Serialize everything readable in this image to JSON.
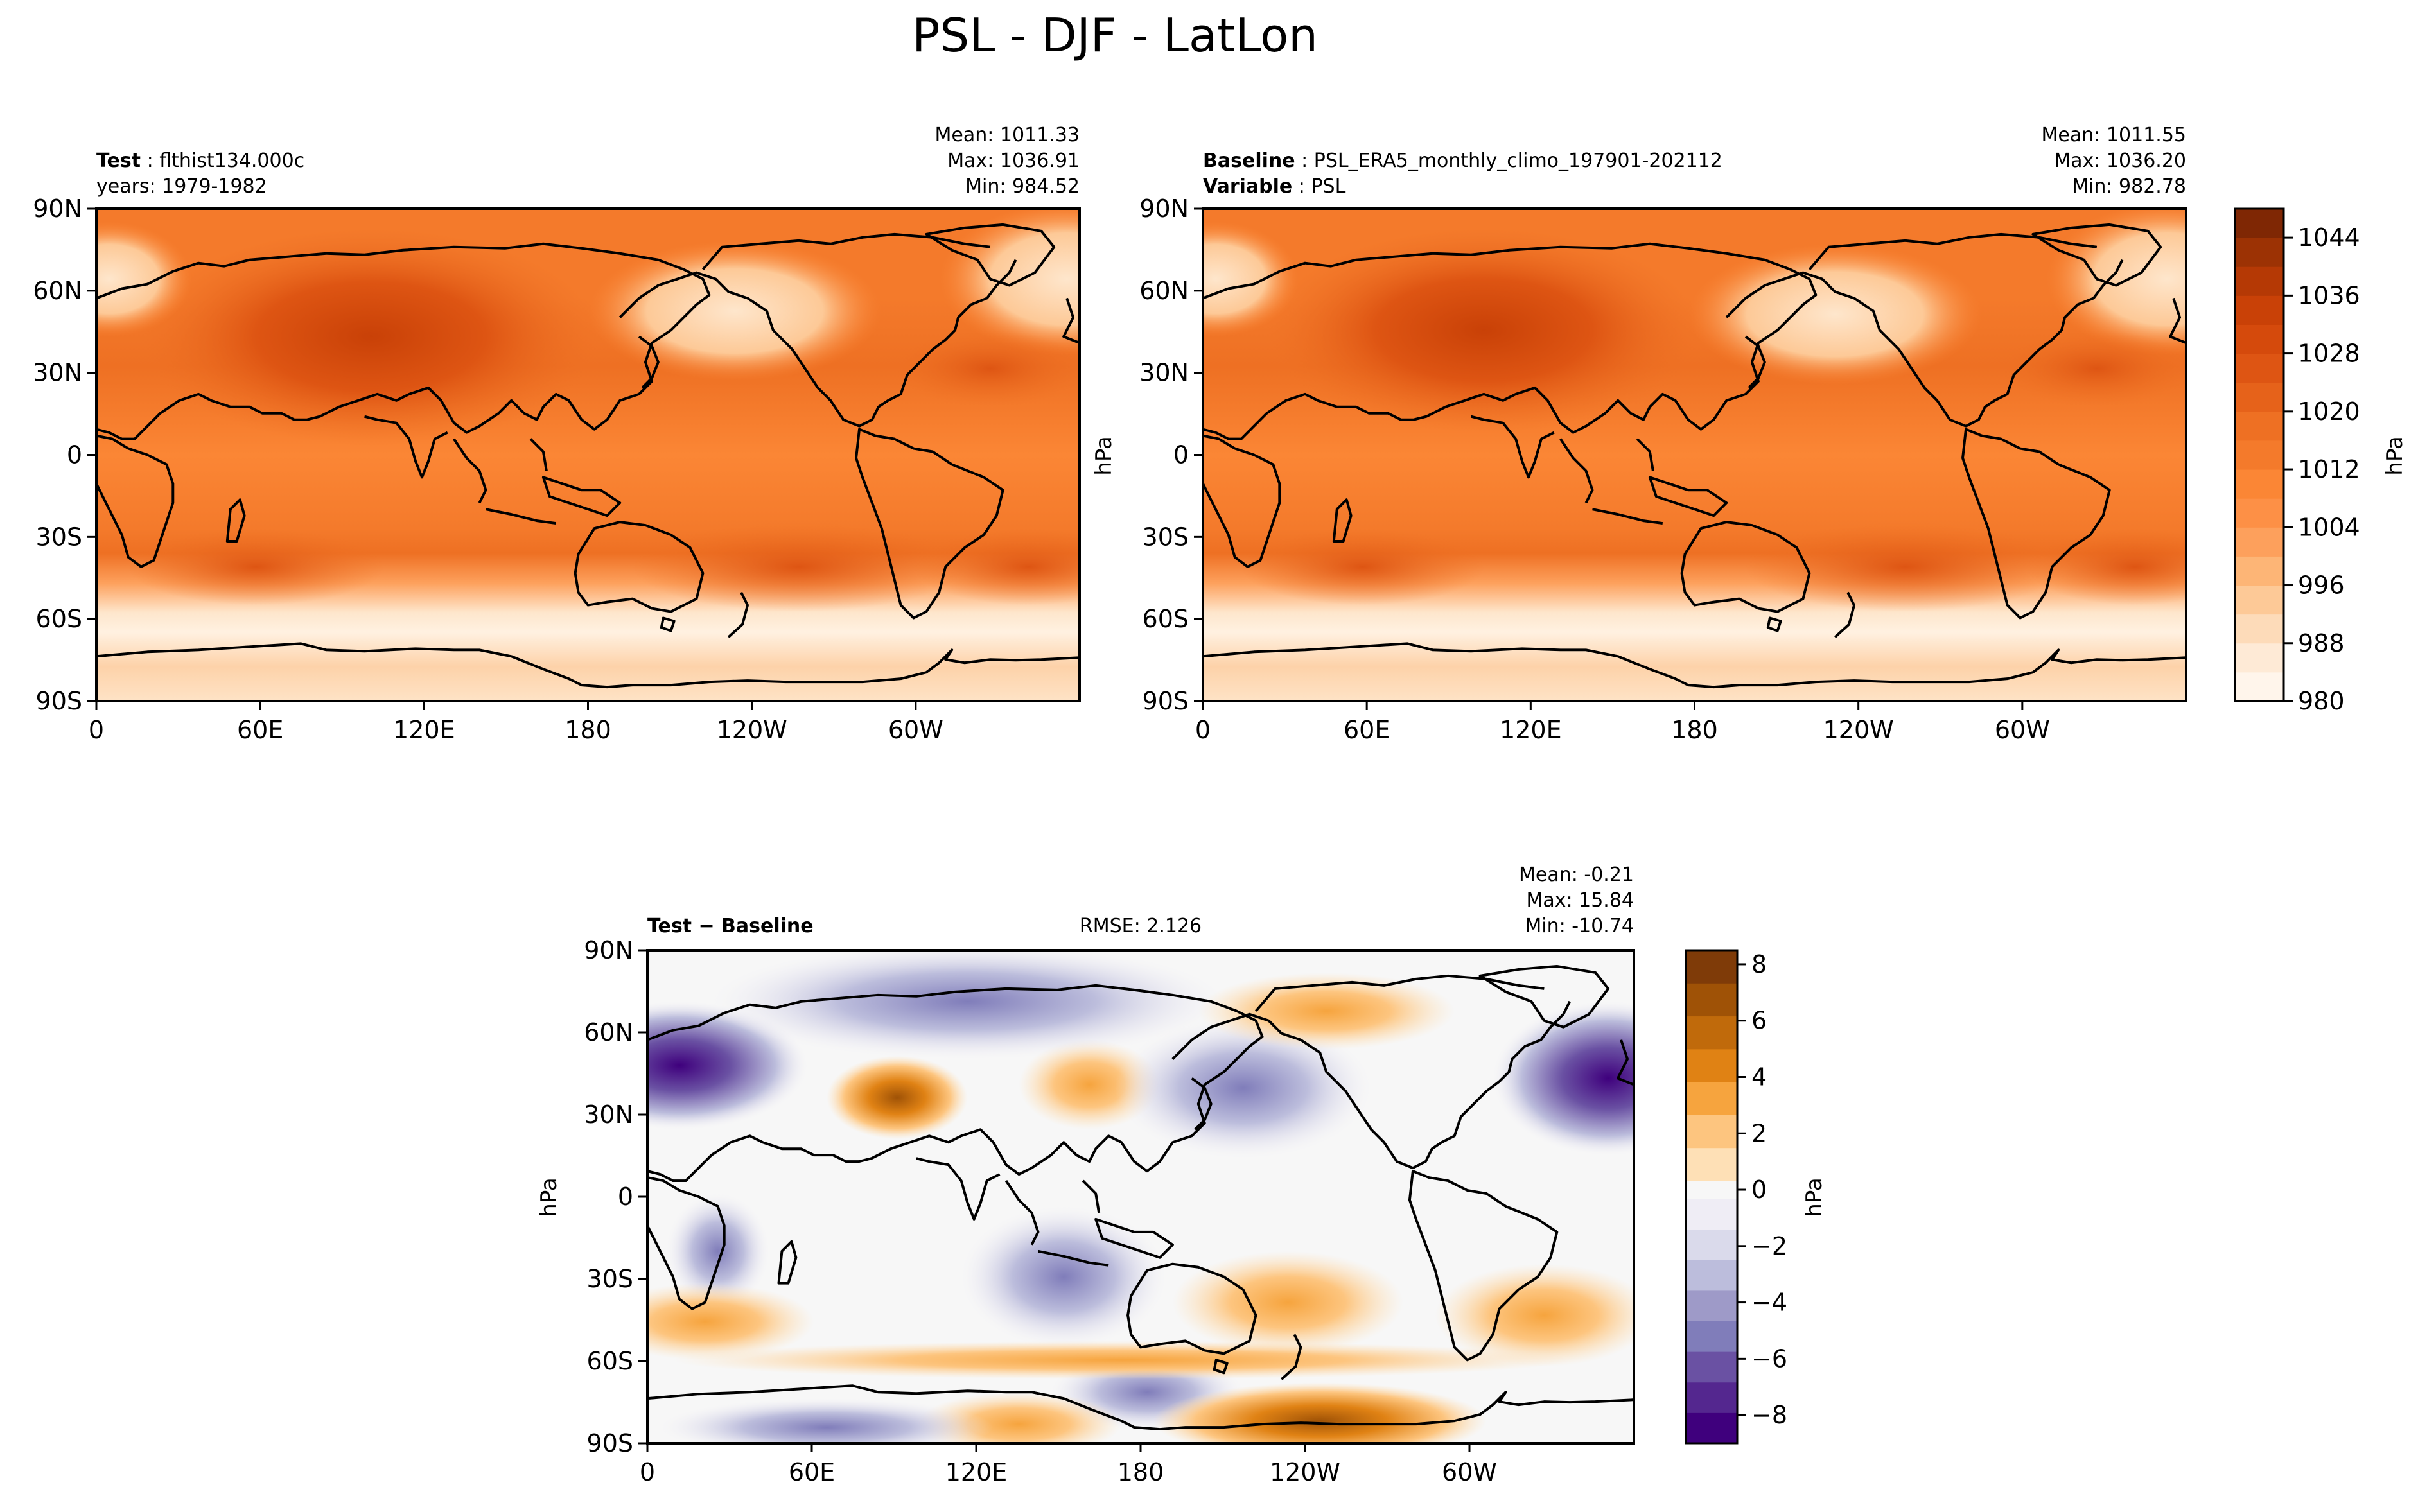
{
  "figure": {
    "title": "PSL - DJF - LatLon"
  },
  "chart_data": [
    {
      "type": "heatmap",
      "id": "test",
      "label_bold": "Test",
      "label_text": "flthist134.000c",
      "label2_text": "years: 1979-1982",
      "stats": {
        "mean": "Mean: 1011.33",
        "max": "Max: 1036.91",
        "min": "Min: 984.52"
      },
      "xticks": [
        "0",
        "60E",
        "120E",
        "180",
        "120W",
        "60W"
      ],
      "yticks": [
        "90N",
        "60N",
        "30N",
        "0",
        "30S",
        "60S",
        "90S"
      ],
      "xlim": [
        0,
        360
      ],
      "ylim": [
        -90,
        90
      ],
      "ylabel": "",
      "field": "absolute",
      "values": {
        "mean": 1011.33,
        "max": 1036.91,
        "min": 984.52
      }
    },
    {
      "type": "heatmap",
      "id": "baseline",
      "label_bold": "Baseline",
      "label_text": "PSL_ERA5_monthly_climo_197901-202112",
      "label2_bold": "Variable",
      "label2_text": "PSL",
      "stats": {
        "mean": "Mean: 1011.55",
        "max": "Max: 1036.20",
        "min": "Min: 982.78"
      },
      "xticks": [
        "0",
        "60E",
        "120E",
        "180",
        "120W",
        "60W"
      ],
      "yticks": [
        "90N",
        "60N",
        "30N",
        "0",
        "30S",
        "60S",
        "90S"
      ],
      "xlim": [
        0,
        360
      ],
      "ylim": [
        -90,
        90
      ],
      "ylabel": "hPa",
      "field": "absolute",
      "values": {
        "mean": 1011.55,
        "max": 1036.2,
        "min": 982.78
      }
    },
    {
      "type": "heatmap",
      "id": "diff",
      "label_bold": "Test − Baseline",
      "rmse": "RMSE: 2.126",
      "stats": {
        "mean": "Mean: -0.21",
        "max": "Max: 15.84",
        "min": "Min: -10.74"
      },
      "xticks": [
        "0",
        "60E",
        "120E",
        "180",
        "120W",
        "60W"
      ],
      "yticks": [
        "90N",
        "60N",
        "30N",
        "0",
        "30S",
        "60S",
        "90S"
      ],
      "xlim": [
        0,
        360
      ],
      "ylim": [
        -90,
        90
      ],
      "ylabel": "hPa",
      "field": "difference",
      "values": {
        "mean": -0.21,
        "max": 15.84,
        "min": -10.74,
        "rmse": 2.126
      }
    }
  ],
  "colorbars": {
    "absolute": {
      "label": "hPa",
      "min": 980,
      "max": 1048,
      "ticks": [
        980,
        988,
        996,
        1004,
        1012,
        1020,
        1028,
        1036,
        1044
      ],
      "tick_labels": [
        "980",
        "988",
        "996",
        "1004",
        "1012",
        "1020",
        "1028",
        "1036",
        "1044"
      ],
      "colors": [
        "#fff5eb",
        "#feead6",
        "#fddbb9",
        "#fdc997",
        "#fdb576",
        "#fda05c",
        "#fd9046",
        "#fb8635",
        "#f47a2b",
        "#ee7023",
        "#e6621a",
        "#de5513",
        "#d54a0c",
        "#c94107",
        "#b53905",
        "#9c3204",
        "#7f2704"
      ]
    },
    "difference": {
      "label": "hPa",
      "min": -9,
      "max": 8.5,
      "ticks": [
        -8,
        -6,
        -4,
        -2,
        0,
        2,
        4,
        6,
        8
      ],
      "tick_labels": [
        "−8",
        "−6",
        "−4",
        "−2",
        "0",
        "2",
        "4",
        "6",
        "8"
      ],
      "neg_colors": [
        "#3f007d",
        "#54278f",
        "#6a51a3",
        "#807dba",
        "#9e9ac8",
        "#bcbddc",
        "#dadaeb",
        "#efedf5"
      ],
      "zero_color": "#f7f7f7",
      "pos_colors": [
        "#fee0b6",
        "#fdc57f",
        "#f6a43e",
        "#e08214",
        "#c06a0b",
        "#9f5206",
        "#7f3b08"
      ]
    }
  },
  "colors": {
    "land_outline": "#000000",
    "axis": "#000000"
  }
}
